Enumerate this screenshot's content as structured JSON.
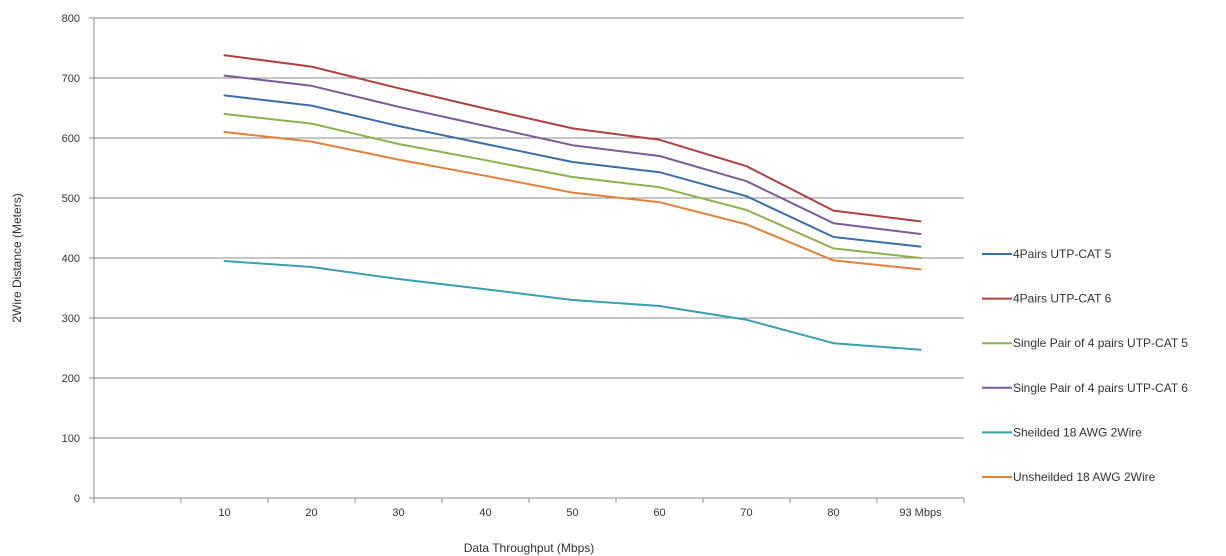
{
  "chart_data": {
    "type": "line",
    "xlabel": "Data Throughput (Mbps)",
    "ylabel": "2Wire Distance (Meters)",
    "categories": [
      "",
      "10",
      "20",
      "30",
      "40",
      "50",
      "60",
      "70",
      "80",
      "93 Mbps"
    ],
    "ylim": [
      0,
      800
    ],
    "yticks": [
      0,
      100,
      200,
      300,
      400,
      500,
      600,
      700,
      800
    ],
    "grid": true,
    "legend": "right",
    "series": [
      {
        "name": "4Pairs UTP-CAT 5",
        "color": "#3b6ea5",
        "values": [
          null,
          671,
          654,
          620,
          590,
          560,
          543,
          503,
          435,
          419
        ]
      },
      {
        "name": "4Pairs UTP-CAT 6",
        "color": "#b04040",
        "values": [
          null,
          738,
          719,
          683,
          649,
          616,
          597,
          553,
          479,
          461
        ]
      },
      {
        "name": "Single Pair of 4 pairs UTP-CAT 5",
        "color": "#8fb04f",
        "values": [
          null,
          640,
          624,
          590,
          563,
          535,
          518,
          480,
          416,
          400
        ]
      },
      {
        "name": "Single Pair of 4 pairs UTP-CAT 6",
        "color": "#7a5c99",
        "values": [
          null,
          704,
          687,
          652,
          620,
          588,
          570,
          528,
          458,
          440
        ]
      },
      {
        "name": "Sheilded 18 AWG 2Wire",
        "color": "#3a9fb0",
        "values": [
          null,
          395,
          385,
          365,
          348,
          330,
          320,
          297,
          258,
          247
        ]
      },
      {
        "name": "Unsheilded 18 AWG 2Wire",
        "color": "#e0823c",
        "values": [
          null,
          610,
          594,
          564,
          537,
          509,
          493,
          456,
          396,
          381
        ]
      }
    ]
  }
}
